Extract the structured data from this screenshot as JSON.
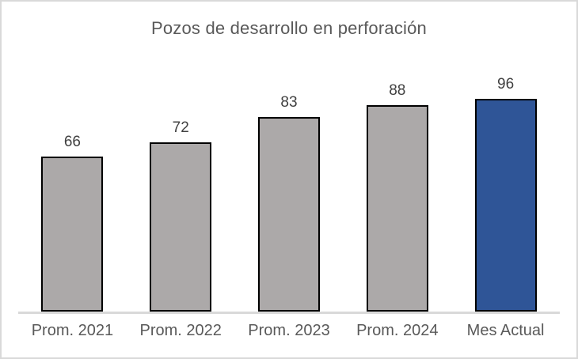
{
  "chart_data": {
    "type": "bar",
    "title": "Pozos de desarrollo en perforación",
    "categories": [
      "Prom. 2021",
      "Prom. 2022",
      "Prom. 2023",
      "Prom. 2024",
      "Mes Actual"
    ],
    "values": [
      66,
      72,
      83,
      88,
      96
    ],
    "data_labels": [
      66,
      72,
      83,
      88,
      96
    ],
    "bar_colors": [
      "#ACA9A9",
      "#ACA9A9",
      "#ACA9A9",
      "#ACA9A9",
      "#2F5597"
    ],
    "bar_border_color": "#000000",
    "axis_line_color": "#D9D9D9",
    "frame_border_color": "#D9D9D9",
    "title_color": "#595959",
    "value_label_color": "#404040",
    "category_label_color": "#595959",
    "xlabel": "",
    "ylabel": "",
    "ylim": [
      0,
      100
    ],
    "grid": false,
    "legend": false
  }
}
